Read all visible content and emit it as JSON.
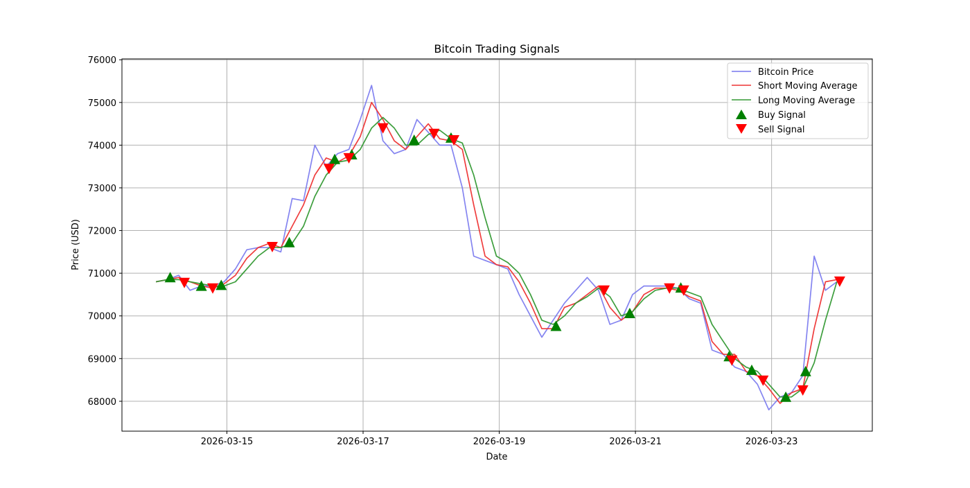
{
  "chart_data": {
    "type": "line",
    "title": "Bitcoin Trading Signals",
    "xlabel": "Date",
    "ylabel": "Price (USD)",
    "xlim": [
      "2026-03-13 11:00",
      "2026-03-24 11:30"
    ],
    "ylim": [
      67300,
      76020
    ],
    "grid": true,
    "legend_position": "top-right",
    "x_ticks": [
      "2026-03-15",
      "2026-03-17",
      "2026-03-19",
      "2026-03-21",
      "2026-03-23"
    ],
    "y_ticks": [
      68000,
      69000,
      70000,
      71000,
      72000,
      73000,
      74000,
      75000,
      76000
    ],
    "x_start": "2026-03-13 23:00",
    "x_step_hours": 4,
    "series": [
      {
        "name": "Bitcoin Price",
        "color": "#7777ee",
        "values": [
          70800,
          70850,
          70950,
          70600,
          70700,
          70700,
          70800,
          71100,
          71550,
          71600,
          71600,
          71500,
          72750,
          72700,
          74000,
          73500,
          73800,
          73900,
          74600,
          75400,
          74100,
          73800,
          73900,
          74600,
          74300,
          74000,
          74000,
          73000,
          71400,
          71300,
          71200,
          71100,
          70500,
          70000,
          69500,
          69900,
          70300,
          70600,
          70900,
          70600,
          69800,
          69900,
          70500,
          70700,
          70700,
          70700,
          70650,
          70400,
          70300,
          69200,
          69100,
          68800,
          68700,
          68400,
          67800,
          68100,
          68200,
          68600,
          71400,
          70600,
          70800
        ]
      },
      {
        "name": "Short Moving Average",
        "color": "#ee3333",
        "values": [
          70800,
          70850,
          70900,
          70800,
          70700,
          70650,
          70750,
          70950,
          71350,
          71600,
          71700,
          71600,
          72100,
          72600,
          73300,
          73700,
          73600,
          73750,
          74200,
          75000,
          74600,
          74100,
          73900,
          74200,
          74500,
          74150,
          74100,
          73900,
          72600,
          71400,
          71200,
          71150,
          70800,
          70300,
          69700,
          69700,
          70200,
          70300,
          70500,
          70700,
          70200,
          69900,
          70100,
          70500,
          70650,
          70650,
          70600,
          70450,
          70350,
          69400,
          69100,
          69100,
          68700,
          68600,
          68300,
          67950,
          68200,
          68300,
          69700,
          70800,
          70850
        ]
      },
      {
        "name": "Long Moving Average",
        "color": "#339933",
        "values": [
          70800,
          70850,
          70850,
          70800,
          70750,
          70700,
          70700,
          70800,
          71100,
          71400,
          71600,
          71600,
          71700,
          72100,
          72800,
          73300,
          73600,
          73650,
          73900,
          74400,
          74650,
          74400,
          74000,
          74000,
          74250,
          74350,
          74150,
          74050,
          73300,
          72300,
          71400,
          71250,
          71000,
          70500,
          69900,
          69800,
          70000,
          70300,
          70450,
          70650,
          70450,
          70000,
          70100,
          70400,
          70600,
          70650,
          70650,
          70550,
          70450,
          69800,
          69400,
          69000,
          68800,
          68700,
          68400,
          68100,
          68100,
          68300,
          68900,
          69900,
          70800
        ]
      }
    ],
    "buy_signals": {
      "name": "Buy Signal",
      "color": "#008000",
      "points": [
        [
          "2026-03-14 04:00",
          70900
        ],
        [
          "2026-03-14 15:00",
          70700
        ],
        [
          "2026-03-14 22:00",
          70720
        ],
        [
          "2026-03-15 22:00",
          71720
        ],
        [
          "2026-03-16 14:00",
          73670
        ],
        [
          "2026-03-16 20:00",
          73780
        ],
        [
          "2026-03-17 18:00",
          74120
        ],
        [
          "2026-03-18 07:00",
          74170
        ],
        [
          "2026-03-19 20:00",
          69760
        ],
        [
          "2026-03-20 22:00",
          70060
        ],
        [
          "2026-03-21 16:00",
          70660
        ],
        [
          "2026-03-22 09:00",
          69050
        ],
        [
          "2026-03-22 17:00",
          68730
        ],
        [
          "2026-03-23 05:00",
          68100
        ],
        [
          "2026-03-23 12:00",
          68700
        ]
      ]
    },
    "sell_signals": {
      "name": "Sell Signal",
      "color": "#ff0000",
      "points": [
        [
          "2026-03-14 09:00",
          70780
        ],
        [
          "2026-03-14 19:00",
          70650
        ],
        [
          "2026-03-15 16:00",
          71620
        ],
        [
          "2026-03-16 12:00",
          73450
        ],
        [
          "2026-03-16 19:00",
          73700
        ],
        [
          "2026-03-17 07:00",
          74400
        ],
        [
          "2026-03-18 01:00",
          74270
        ],
        [
          "2026-03-18 08:00",
          74120
        ],
        [
          "2026-03-20 13:00",
          70600
        ],
        [
          "2026-03-21 12:00",
          70650
        ],
        [
          "2026-03-21 17:00",
          70600
        ],
        [
          "2026-03-22 10:00",
          68960
        ],
        [
          "2026-03-22 21:00",
          68490
        ],
        [
          "2026-03-23 11:00",
          68260
        ],
        [
          "2026-03-24 00:00",
          70810
        ]
      ]
    }
  }
}
